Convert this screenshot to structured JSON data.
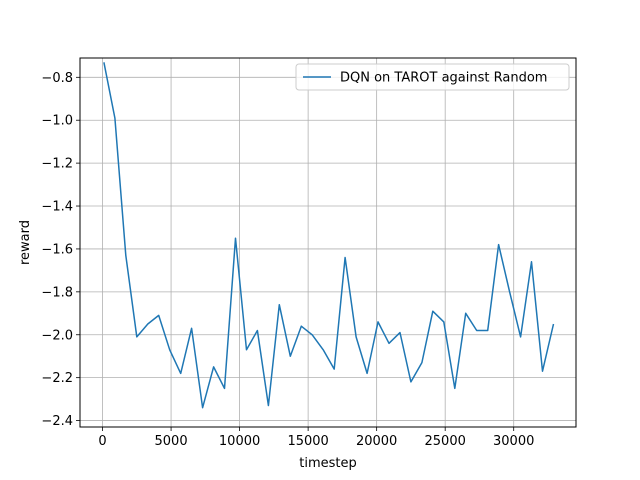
{
  "chart_data": {
    "type": "line",
    "xlabel": "timestep",
    "ylabel": "reward",
    "xlim": [
      -1645,
      34545
    ],
    "ylim": [
      -2.43,
      -0.71
    ],
    "xticks": [
      0,
      5000,
      10000,
      15000,
      20000,
      25000,
      30000
    ],
    "yticks": [
      -2.4,
      -2.2,
      -2.0,
      -1.8,
      -1.6,
      -1.4,
      -1.2,
      -1.0,
      -0.8
    ],
    "grid": true,
    "legend_position": "top-right",
    "series": [
      {
        "name": "DQN on TAROT against Random",
        "color": "#1f77b4",
        "x": [
          100,
          900,
          1700,
          2500,
          3300,
          4100,
          4900,
          5700,
          6500,
          7300,
          8100,
          8900,
          9700,
          10500,
          11300,
          12100,
          12900,
          13700,
          14500,
          15300,
          16100,
          16900,
          17700,
          18500,
          19300,
          20100,
          20900,
          21700,
          22500,
          23300,
          24100,
          24900,
          25700,
          26500,
          27300,
          28100,
          28900,
          29700,
          30500,
          31300,
          32100,
          32900
        ],
        "y": [
          -0.73,
          -0.99,
          -1.63,
          -2.01,
          -1.95,
          -1.91,
          -2.07,
          -2.18,
          -1.97,
          -2.34,
          -2.15,
          -2.25,
          -1.55,
          -2.07,
          -1.98,
          -2.33,
          -1.86,
          -2.1,
          -1.96,
          -2.0,
          -2.07,
          -2.16,
          -1.64,
          -2.01,
          -2.18,
          -1.94,
          -2.04,
          -1.99,
          -2.22,
          -2.13,
          -1.89,
          -1.94,
          -2.25,
          -1.9,
          -1.98,
          -1.98,
          -1.58,
          -1.8,
          -2.01,
          -1.66,
          -2.17,
          -1.95
        ]
      }
    ]
  }
}
